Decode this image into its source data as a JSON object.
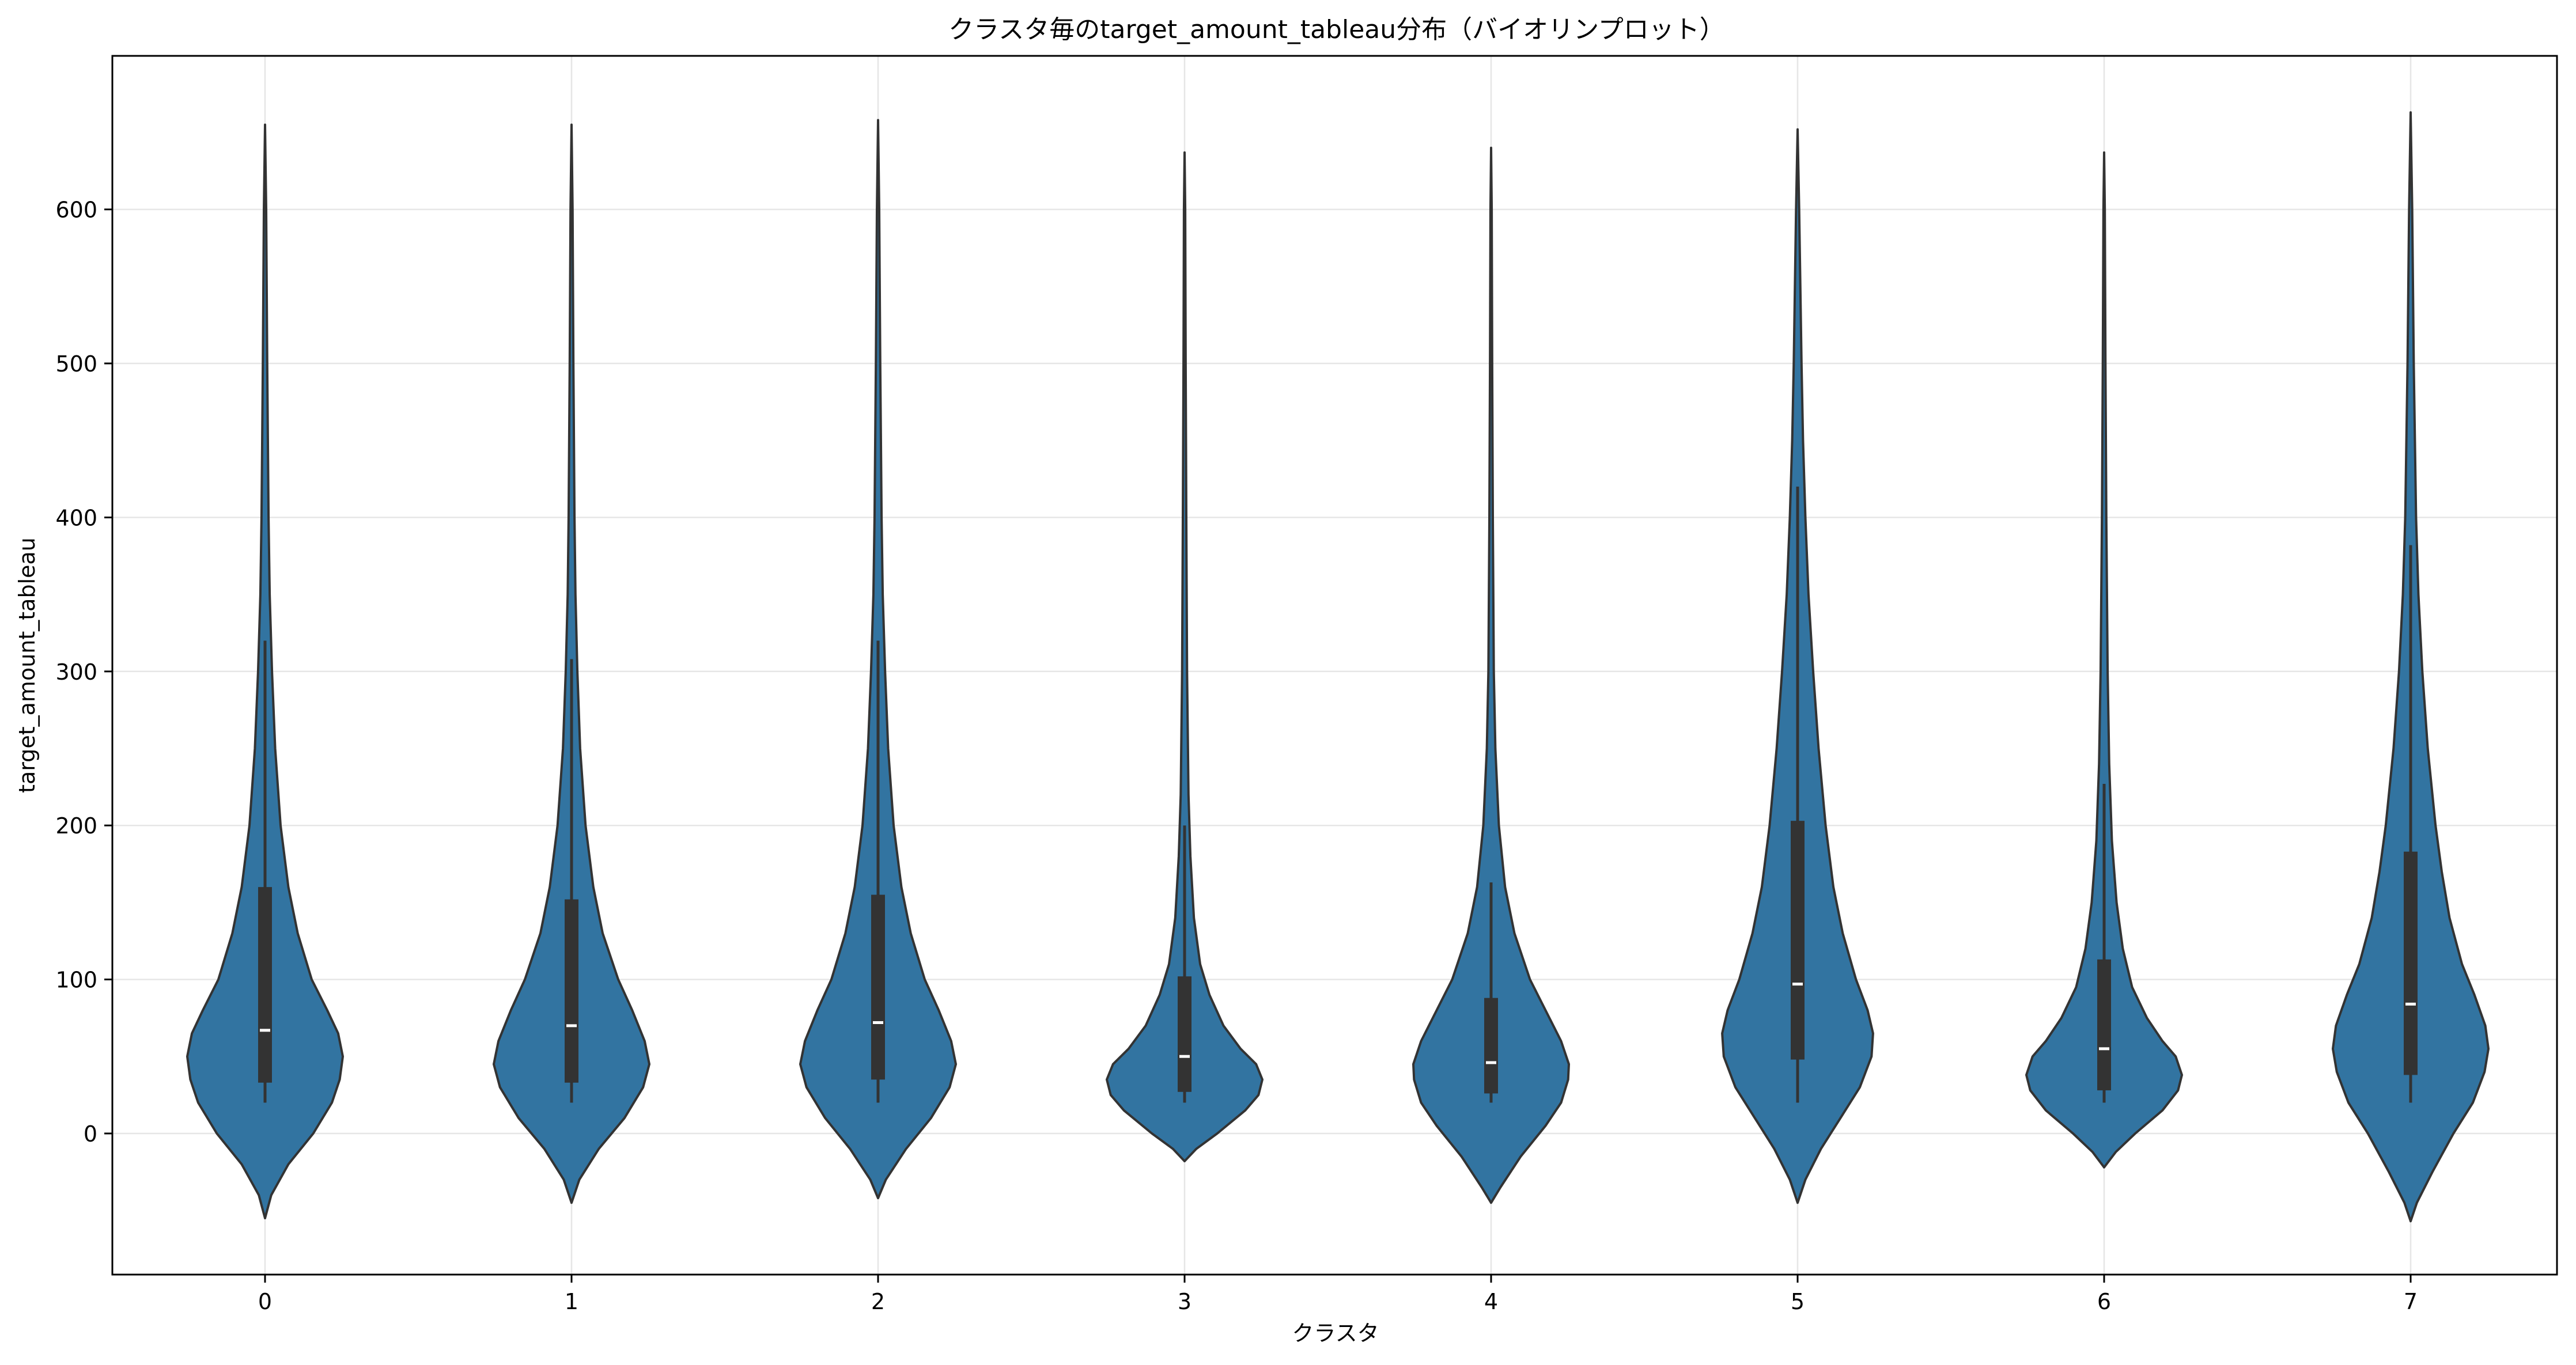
{
  "chart_data": {
    "type": "violin",
    "title": "クラスタ毎のtarget_amount_tableau分布（バイオリンプロット）",
    "xlabel": "クラスタ",
    "ylabel": "target_amount_tableau",
    "categories": [
      "0",
      "1",
      "2",
      "3",
      "4",
      "5",
      "6",
      "7"
    ],
    "ylim": [
      -90,
      700
    ],
    "yticks": [
      0,
      100,
      200,
      300,
      400,
      500,
      600
    ],
    "grid": true,
    "colors": {
      "violin": "#3274a1",
      "edge": "#333333",
      "box": "#333333",
      "median": "#ffffff",
      "grid": "#e6e6e6"
    },
    "violins": [
      {
        "category": "0",
        "min": -55,
        "max": 655,
        "q1": 33,
        "median": 67,
        "q3": 160,
        "whisker_low": 20,
        "whisker_high": 320,
        "profile": [
          [
            -55,
            0
          ],
          [
            -40,
            0.08
          ],
          [
            -20,
            0.3
          ],
          [
            0,
            0.62
          ],
          [
            20,
            0.86
          ],
          [
            35,
            0.96
          ],
          [
            50,
            1.0
          ],
          [
            65,
            0.94
          ],
          [
            80,
            0.8
          ],
          [
            100,
            0.6
          ],
          [
            130,
            0.42
          ],
          [
            160,
            0.3
          ],
          [
            200,
            0.2
          ],
          [
            250,
            0.13
          ],
          [
            300,
            0.09
          ],
          [
            350,
            0.06
          ],
          [
            400,
            0.045
          ],
          [
            500,
            0.028
          ],
          [
            600,
            0.015
          ],
          [
            655,
            0
          ]
        ]
      },
      {
        "category": "1",
        "min": -45,
        "max": 655,
        "q1": 33,
        "median": 70,
        "q3": 152,
        "whisker_low": 20,
        "whisker_high": 308,
        "profile": [
          [
            -45,
            0
          ],
          [
            -30,
            0.1
          ],
          [
            -10,
            0.35
          ],
          [
            10,
            0.68
          ],
          [
            30,
            0.92
          ],
          [
            45,
            1.0
          ],
          [
            60,
            0.94
          ],
          [
            80,
            0.78
          ],
          [
            100,
            0.6
          ],
          [
            130,
            0.4
          ],
          [
            160,
            0.28
          ],
          [
            200,
            0.18
          ],
          [
            250,
            0.11
          ],
          [
            300,
            0.075
          ],
          [
            350,
            0.05
          ],
          [
            400,
            0.038
          ],
          [
            500,
            0.024
          ],
          [
            600,
            0.013
          ],
          [
            655,
            0
          ]
        ]
      },
      {
        "category": "2",
        "min": -42,
        "max": 658,
        "q1": 35,
        "median": 72,
        "q3": 155,
        "whisker_low": 20,
        "whisker_high": 320,
        "profile": [
          [
            -42,
            0
          ],
          [
            -30,
            0.1
          ],
          [
            -10,
            0.36
          ],
          [
            10,
            0.68
          ],
          [
            30,
            0.92
          ],
          [
            45,
            1.0
          ],
          [
            60,
            0.94
          ],
          [
            80,
            0.78
          ],
          [
            100,
            0.6
          ],
          [
            130,
            0.42
          ],
          [
            160,
            0.3
          ],
          [
            200,
            0.2
          ],
          [
            250,
            0.13
          ],
          [
            300,
            0.09
          ],
          [
            350,
            0.06
          ],
          [
            400,
            0.045
          ],
          [
            500,
            0.028
          ],
          [
            600,
            0.015
          ],
          [
            658,
            0
          ]
        ]
      },
      {
        "category": "3",
        "min": -18,
        "max": 637,
        "q1": 27,
        "median": 50,
        "q3": 102,
        "whisker_low": 20,
        "whisker_high": 200,
        "profile": [
          [
            -18,
            0
          ],
          [
            -10,
            0.15
          ],
          [
            0,
            0.42
          ],
          [
            15,
            0.78
          ],
          [
            25,
            0.95
          ],
          [
            35,
            1.0
          ],
          [
            45,
            0.92
          ],
          [
            55,
            0.72
          ],
          [
            70,
            0.5
          ],
          [
            90,
            0.32
          ],
          [
            110,
            0.2
          ],
          [
            140,
            0.12
          ],
          [
            180,
            0.075
          ],
          [
            220,
            0.05
          ],
          [
            300,
            0.032
          ],
          [
            400,
            0.022
          ],
          [
            500,
            0.014
          ],
          [
            600,
            0.008
          ],
          [
            637,
            0
          ]
        ]
      },
      {
        "category": "4",
        "min": -45,
        "max": 640,
        "q1": 26,
        "median": 46,
        "q3": 88,
        "whisker_low": 20,
        "whisker_high": 163,
        "profile": [
          [
            -45,
            0
          ],
          [
            -35,
            0.12
          ],
          [
            -15,
            0.38
          ],
          [
            5,
            0.7
          ],
          [
            20,
            0.9
          ],
          [
            35,
            0.99
          ],
          [
            45,
            1.0
          ],
          [
            60,
            0.9
          ],
          [
            80,
            0.7
          ],
          [
            100,
            0.5
          ],
          [
            130,
            0.3
          ],
          [
            160,
            0.18
          ],
          [
            200,
            0.1
          ],
          [
            250,
            0.055
          ],
          [
            300,
            0.035
          ],
          [
            400,
            0.022
          ],
          [
            500,
            0.014
          ],
          [
            600,
            0.008
          ],
          [
            640,
            0
          ]
        ]
      },
      {
        "category": "5",
        "min": -45,
        "max": 652,
        "q1": 48,
        "median": 97,
        "q3": 203,
        "whisker_low": 20,
        "whisker_high": 420,
        "profile": [
          [
            -45,
            0
          ],
          [
            -30,
            0.1
          ],
          [
            -10,
            0.3
          ],
          [
            10,
            0.55
          ],
          [
            30,
            0.8
          ],
          [
            50,
            0.95
          ],
          [
            65,
            0.97
          ],
          [
            80,
            0.9
          ],
          [
            100,
            0.75
          ],
          [
            130,
            0.58
          ],
          [
            160,
            0.46
          ],
          [
            200,
            0.36
          ],
          [
            250,
            0.27
          ],
          [
            300,
            0.2
          ],
          [
            350,
            0.14
          ],
          [
            400,
            0.1
          ],
          [
            450,
            0.07
          ],
          [
            500,
            0.05
          ],
          [
            600,
            0.02
          ],
          [
            652,
            0
          ]
        ]
      },
      {
        "category": "6",
        "min": -22,
        "max": 637,
        "q1": 28,
        "median": 55,
        "q3": 113,
        "whisker_low": 20,
        "whisker_high": 227,
        "profile": [
          [
            -22,
            0
          ],
          [
            -12,
            0.15
          ],
          [
            0,
            0.4
          ],
          [
            15,
            0.75
          ],
          [
            28,
            0.95
          ],
          [
            38,
            1.0
          ],
          [
            50,
            0.92
          ],
          [
            60,
            0.75
          ],
          [
            75,
            0.55
          ],
          [
            95,
            0.36
          ],
          [
            120,
            0.24
          ],
          [
            150,
            0.16
          ],
          [
            190,
            0.1
          ],
          [
            240,
            0.065
          ],
          [
            300,
            0.045
          ],
          [
            400,
            0.028
          ],
          [
            500,
            0.017
          ],
          [
            600,
            0.009
          ],
          [
            637,
            0
          ]
        ]
      },
      {
        "category": "7",
        "min": -57,
        "max": 663,
        "q1": 38,
        "median": 84,
        "q3": 183,
        "whisker_low": 20,
        "whisker_high": 382,
        "profile": [
          [
            -57,
            0
          ],
          [
            -45,
            0.08
          ],
          [
            -25,
            0.28
          ],
          [
            0,
            0.55
          ],
          [
            20,
            0.8
          ],
          [
            40,
            0.95
          ],
          [
            55,
            1.0
          ],
          [
            70,
            0.96
          ],
          [
            90,
            0.82
          ],
          [
            110,
            0.66
          ],
          [
            140,
            0.5
          ],
          [
            170,
            0.4
          ],
          [
            200,
            0.32
          ],
          [
            250,
            0.22
          ],
          [
            300,
            0.15
          ],
          [
            350,
            0.1
          ],
          [
            400,
            0.07
          ],
          [
            500,
            0.04
          ],
          [
            600,
            0.02
          ],
          [
            663,
            0
          ]
        ]
      }
    ]
  }
}
